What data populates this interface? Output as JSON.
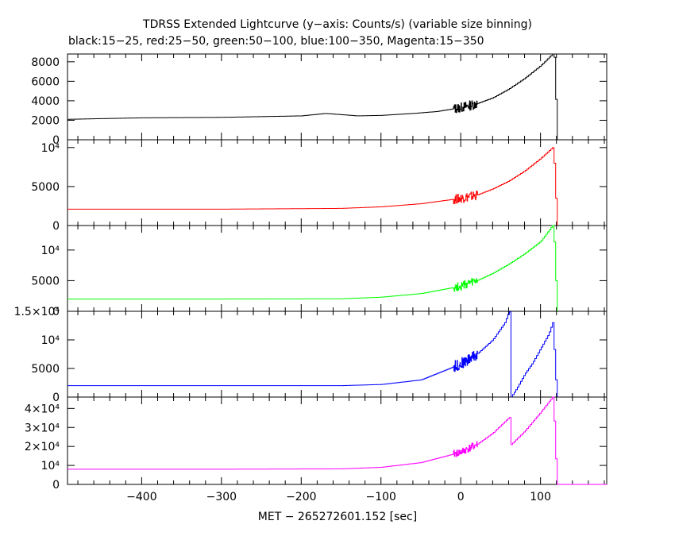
{
  "title": "TDRSS Extended Lightcurve (y−axis: Counts/s) (variable size binning)",
  "subtitle": "black:15−25, red:25−50, green:50−100, blue:100−350, Magenta:15−350",
  "chart_data": {
    "type": "line",
    "xlabel": "MET − 265272601.152 [sec]",
    "xlim": [
      -493,
      183
    ],
    "xticks": [
      -400,
      -300,
      -200,
      -100,
      0,
      100
    ],
    "xtick_labels": [
      "−400",
      "−300",
      "−200",
      "−100",
      "0",
      "100"
    ],
    "panels": [
      {
        "name": "black:15−25",
        "color": "#000000",
        "ylim": [
          0,
          8800
        ],
        "yticks": [
          0,
          2000,
          4000,
          6000,
          8000
        ],
        "ytick_labels": [
          "0",
          "2000",
          "4000",
          "6000",
          "8000"
        ],
        "noise_region": [
          -10,
          20
        ],
        "noise_amp": 500,
        "points": [
          [
            -493,
            2100
          ],
          [
            -400,
            2250
          ],
          [
            -300,
            2300
          ],
          [
            -200,
            2450
          ],
          [
            -170,
            2700
          ],
          [
            -130,
            2450
          ],
          [
            -100,
            2500
          ],
          [
            -60,
            2700
          ],
          [
            -30,
            2900
          ],
          [
            0,
            3300
          ],
          [
            20,
            3700
          ],
          [
            40,
            4300
          ],
          [
            60,
            5200
          ],
          [
            80,
            6300
          ],
          [
            100,
            7600
          ],
          [
            115,
            8800
          ],
          [
            118,
            8300
          ],
          [
            120,
            0
          ],
          [
            183,
            0
          ]
        ]
      },
      {
        "name": "red:25−50",
        "color": "#ff0000",
        "ylim": [
          0,
          11000
        ],
        "yticks": [
          0,
          5000,
          10000
        ],
        "ytick_labels": [
          "0",
          "5000",
          "10⁴"
        ],
        "noise_region": [
          -10,
          20
        ],
        "noise_amp": 600,
        "points": [
          [
            -493,
            2100
          ],
          [
            -300,
            2100
          ],
          [
            -150,
            2200
          ],
          [
            -100,
            2400
          ],
          [
            -50,
            2800
          ],
          [
            0,
            3500
          ],
          [
            20,
            3900
          ],
          [
            40,
            4700
          ],
          [
            60,
            5700
          ],
          [
            80,
            7000
          ],
          [
            100,
            8600
          ],
          [
            115,
            10000
          ],
          [
            118,
            7000
          ],
          [
            120,
            0
          ],
          [
            183,
            0
          ]
        ]
      },
      {
        "name": "green:50−100",
        "color": "#00ff00",
        "ylim": [
          0,
          14000
        ],
        "yticks": [
          0,
          5000,
          10000
        ],
        "ytick_labels": [
          "0",
          "5000",
          "10⁴"
        ],
        "noise_region": [
          -10,
          20
        ],
        "noise_amp": 700,
        "points": [
          [
            -493,
            2000
          ],
          [
            -300,
            2000
          ],
          [
            -150,
            2050
          ],
          [
            -100,
            2300
          ],
          [
            -50,
            2900
          ],
          [
            0,
            4100
          ],
          [
            20,
            5000
          ],
          [
            40,
            6200
          ],
          [
            60,
            7700
          ],
          [
            80,
            9400
          ],
          [
            100,
            11400
          ],
          [
            115,
            14000
          ],
          [
            118,
            10000
          ],
          [
            120,
            0
          ],
          [
            183,
            0
          ]
        ]
      },
      {
        "name": "blue:100−350",
        "color": "#0000ff",
        "ylim": [
          0,
          15000
        ],
        "yticks": [
          0,
          5000,
          10000,
          15000
        ],
        "ytick_labels": [
          "0",
          "5000",
          "10⁴",
          "1.5×10⁴"
        ],
        "noise_region": [
          -10,
          20
        ],
        "noise_amp": 1000,
        "points": [
          [
            -493,
            2000
          ],
          [
            -300,
            2000
          ],
          [
            -150,
            2000
          ],
          [
            -100,
            2200
          ],
          [
            -50,
            3000
          ],
          [
            0,
            5800
          ],
          [
            20,
            7500
          ],
          [
            40,
            10000
          ],
          [
            55,
            13000
          ],
          [
            60,
            14800
          ],
          [
            62,
            15000
          ],
          [
            63,
            0
          ],
          [
            70,
            1500
          ],
          [
            80,
            4000
          ],
          [
            90,
            6000
          ],
          [
            100,
            8500
          ],
          [
            110,
            11000
          ],
          [
            115,
            13000
          ],
          [
            118,
            6000
          ],
          [
            120,
            0
          ],
          [
            183,
            0
          ]
        ]
      },
      {
        "name": "Magenta:15−350",
        "color": "#ff00ff",
        "ylim": [
          0,
          46000
        ],
        "yticks": [
          0,
          10000,
          20000,
          30000,
          40000
        ],
        "ytick_labels": [
          "0",
          "10⁴",
          "2×10⁴",
          "3×10⁴",
          "4×10⁴"
        ],
        "noise_region": [
          -10,
          20
        ],
        "noise_amp": 2000,
        "points": [
          [
            -493,
            8000
          ],
          [
            -300,
            8000
          ],
          [
            -150,
            8200
          ],
          [
            -100,
            9000
          ],
          [
            -50,
            11500
          ],
          [
            0,
            17000
          ],
          [
            20,
            21000
          ],
          [
            40,
            27000
          ],
          [
            60,
            35000
          ],
          [
            62,
            35500
          ],
          [
            63,
            21000
          ],
          [
            80,
            28000
          ],
          [
            100,
            38000
          ],
          [
            115,
            46000
          ],
          [
            118,
            27000
          ],
          [
            120,
            0
          ],
          [
            183,
            0
          ]
        ]
      }
    ]
  }
}
